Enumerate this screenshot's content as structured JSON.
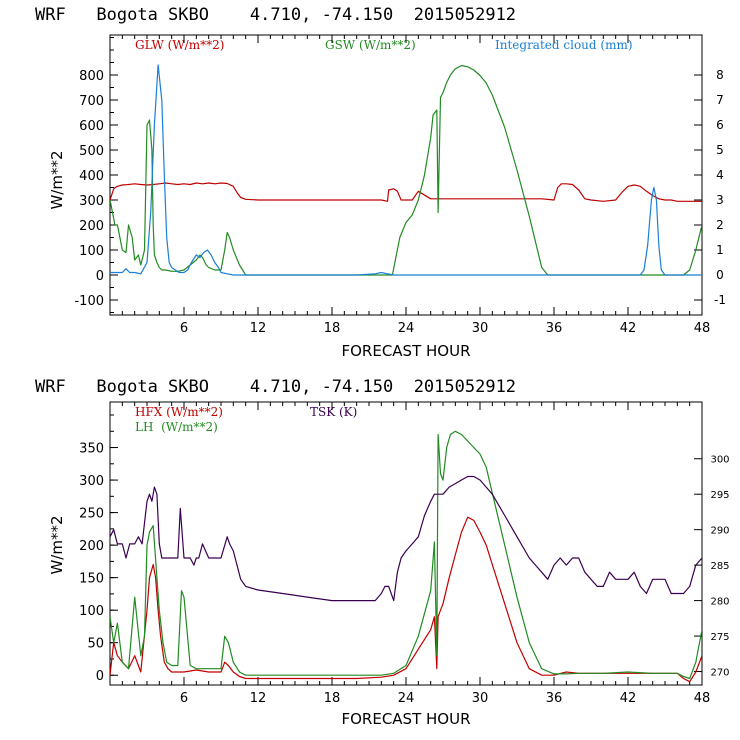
{
  "colors": {
    "glw": "#c00000",
    "gsw": "#228b22",
    "cloud": "#1a7fd4",
    "hfx": "#c00000",
    "lh": "#228b22",
    "tsk": "#3a0050"
  },
  "chart_data": [
    {
      "type": "line",
      "title": "WRF   Bogota SKBO    4.710, -74.150  2015052912",
      "xlabel": "FORECAST HOUR",
      "ylabel": "W/m**2",
      "xlim": [
        0,
        48
      ],
      "ylim": [
        -160,
        960
      ],
      "y2lim": [
        -1.6,
        9.6
      ],
      "xticks": [
        6,
        12,
        18,
        24,
        30,
        36,
        42,
        48
      ],
      "xtick_labels": [
        "6",
        "12",
        "18",
        "24",
        "30",
        "36",
        "42",
        "48"
      ],
      "yticks": [
        -100,
        0,
        100,
        200,
        300,
        400,
        500,
        600,
        700,
        800
      ],
      "ytick_labels": [
        "-100",
        "0",
        "100",
        "200",
        "300",
        "400",
        "500",
        "600",
        "700",
        "800"
      ],
      "y2ticks": [
        -1,
        0,
        1,
        2,
        3,
        4,
        5,
        6,
        7,
        8
      ],
      "y2tick_labels": [
        "-1",
        "0",
        "1",
        "2",
        "3",
        "4",
        "5",
        "6",
        "7",
        "8"
      ],
      "series": [
        {
          "name": "GLW (W/m**2)",
          "key": "glw",
          "axis": "left",
          "x": [
            0,
            0.3,
            0.6,
            1,
            1.5,
            2,
            2.5,
            3,
            3.5,
            4,
            4.5,
            5,
            5.5,
            6,
            6.5,
            7,
            7.5,
            8,
            8.5,
            9,
            9.5,
            10,
            10.3,
            10.6,
            11,
            12,
            14,
            16,
            18,
            20,
            21,
            21.5,
            22,
            22.5,
            22.6,
            23,
            23.3,
            23.6,
            24,
            24.5,
            25,
            26,
            27,
            28,
            30,
            32,
            34,
            35,
            36,
            36.3,
            36.6,
            37,
            37.5,
            38,
            38.5,
            39,
            40,
            41,
            41.5,
            42,
            42.5,
            43,
            43.5,
            44,
            44.5,
            45,
            45.5,
            46,
            47,
            48
          ],
          "values": [
            300,
            345,
            355,
            360,
            362,
            365,
            362,
            360,
            362,
            365,
            368,
            365,
            362,
            365,
            362,
            368,
            365,
            368,
            365,
            368,
            366,
            355,
            330,
            310,
            303,
            300,
            300,
            300,
            300,
            300,
            300,
            300,
            300,
            295,
            340,
            345,
            335,
            300,
            300,
            300,
            335,
            305,
            305,
            305,
            305,
            305,
            305,
            305,
            300,
            350,
            365,
            365,
            362,
            340,
            305,
            300,
            295,
            300,
            330,
            355,
            360,
            355,
            335,
            318,
            305,
            300,
            300,
            295,
            295,
            295
          ]
        },
        {
          "name": "GSW (W/m**2)",
          "key": "gsw",
          "axis": "left",
          "x": [
            0,
            0.2,
            0.4,
            0.6,
            0.8,
            1,
            1.3,
            1.5,
            1.8,
            2,
            2.3,
            2.5,
            2.8,
            3,
            3.2,
            3.4,
            3.5,
            3.6,
            3.8,
            4,
            4.2,
            4.5,
            5,
            5.5,
            6,
            6.5,
            7,
            7.3,
            7.5,
            7.8,
            8,
            8.5,
            9,
            9.3,
            9.5,
            9.7,
            10,
            10.5,
            11,
            12,
            16,
            20,
            22,
            22.9,
            23.5,
            24,
            24.5,
            25,
            25.5,
            26,
            26.2,
            26.5,
            26.6,
            26.8,
            27,
            27.3,
            27.6,
            28,
            28.5,
            29,
            29.5,
            30,
            30.5,
            31,
            32,
            33,
            34,
            35,
            35.5,
            36,
            44,
            46.5,
            47,
            47.5,
            48
          ],
          "values": [
            300,
            250,
            200,
            200,
            150,
            100,
            90,
            200,
            150,
            60,
            80,
            40,
            100,
            600,
            620,
            500,
            200,
            80,
            50,
            30,
            20,
            20,
            15,
            15,
            20,
            40,
            60,
            80,
            70,
            40,
            30,
            20,
            20,
            100,
            170,
            150,
            100,
            40,
            0,
            0,
            0,
            0,
            0,
            0,
            150,
            210,
            240,
            300,
            400,
            550,
            640,
            660,
            250,
            710,
            730,
            770,
            800,
            825,
            838,
            833,
            820,
            798,
            768,
            720,
            590,
            420,
            235,
            30,
            0,
            0,
            0,
            0,
            20,
            100,
            200
          ]
        },
        {
          "name": "Integrated cloud (mm)",
          "key": "cloud",
          "axis": "right",
          "x": [
            0,
            0.5,
            1,
            1.3,
            1.6,
            2,
            2.5,
            3,
            3.3,
            3.6,
            3.9,
            4.2,
            4.4,
            4.6,
            4.8,
            5,
            5.3,
            5.6,
            6,
            6.3,
            6.6,
            7,
            7.3,
            7.6,
            7.9,
            8.2,
            8.5,
            8.8,
            9,
            9.5,
            10,
            12,
            16,
            20,
            21.5,
            22,
            22.5,
            23,
            30,
            43,
            43.3,
            43.6,
            43.9,
            44.1,
            44.3,
            44.5,
            44.7,
            45,
            48
          ],
          "values": [
            0.1,
            0.1,
            0.1,
            0.25,
            0.1,
            0.1,
            0.05,
            0.5,
            2.5,
            6,
            8.4,
            7,
            4,
            1.5,
            0.5,
            0.3,
            0.2,
            0.1,
            0.1,
            0.2,
            0.5,
            0.8,
            0.7,
            0.9,
            1.0,
            0.8,
            0.5,
            0.3,
            0.1,
            0.05,
            0,
            0,
            0,
            0,
            0.05,
            0.1,
            0.05,
            0,
            0,
            0,
            0.2,
            1.2,
            3.0,
            3.5,
            3.0,
            1.2,
            0.2,
            0,
            0
          ]
        }
      ]
    },
    {
      "type": "line",
      "title": "WRF   Bogota SKBO    4.710, -74.150  2015052912",
      "xlabel": "FORECAST HOUR",
      "ylabel": "W/m**2",
      "xlim": [
        0,
        48
      ],
      "ylim": [
        -15,
        420
      ],
      "y2lim": [
        268.1,
        308
      ],
      "xticks": [
        6,
        12,
        18,
        24,
        30,
        36,
        42,
        48
      ],
      "xtick_labels": [
        "6",
        "12",
        "18",
        "24",
        "30",
        "36",
        "42",
        "48"
      ],
      "yticks": [
        0,
        50,
        100,
        150,
        200,
        250,
        300,
        350
      ],
      "ytick_labels": [
        "0",
        "50",
        "100",
        "150",
        "200",
        "250",
        "300",
        "350"
      ],
      "y2ticks": [
        270,
        275,
        280,
        285,
        290,
        295,
        300
      ],
      "y2tick_labels": [
        "270",
        "275",
        "280",
        "285",
        "290",
        "295",
        "300"
      ],
      "series": [
        {
          "name": "HFX (W/m**2)",
          "key": "hfx",
          "axis": "left",
          "x": [
            0,
            0.3,
            0.6,
            1,
            1.5,
            2,
            2.5,
            3,
            3.2,
            3.5,
            3.7,
            3.9,
            4.1,
            4.4,
            4.7,
            5,
            5.5,
            6,
            7,
            8,
            9,
            9.3,
            9.6,
            10,
            10.5,
            11,
            12,
            14,
            16,
            18,
            20,
            22,
            23,
            24,
            25,
            26,
            26.3,
            26.5,
            26.6,
            26.8,
            27,
            27.5,
            28,
            28.5,
            29,
            29.5,
            30,
            30.5,
            31,
            32,
            33,
            34,
            35,
            36,
            37,
            38,
            40,
            42,
            44,
            46,
            46.5,
            47,
            47.5,
            48
          ],
          "values": [
            0,
            50,
            30,
            20,
            10,
            30,
            5,
            100,
            150,
            170,
            150,
            100,
            60,
            20,
            10,
            5,
            5,
            5,
            8,
            5,
            5,
            20,
            15,
            5,
            -2,
            -5,
            -5,
            -5,
            -5,
            -5,
            -5,
            -3,
            0,
            10,
            40,
            70,
            90,
            10,
            90,
            100,
            110,
            150,
            185,
            220,
            243,
            238,
            220,
            200,
            170,
            110,
            50,
            10,
            0,
            0,
            5,
            3,
            3,
            3,
            3,
            3,
            -5,
            -10,
            5,
            30
          ]
        },
        {
          "name": "LH  (W/m**2)",
          "key": "lh",
          "axis": "left",
          "x": [
            0,
            0.3,
            0.6,
            1,
            1.5,
            2,
            2.5,
            2.8,
            3,
            3.2,
            3.5,
            3.8,
            4,
            4.3,
            4.6,
            5,
            5.5,
            5.8,
            6,
            6.5,
            7,
            8,
            9,
            9.3,
            9.6,
            10,
            10.5,
            11,
            12,
            14,
            16,
            18,
            20,
            22,
            23,
            24,
            25,
            26,
            26.3,
            26.5,
            26.6,
            26.8,
            27,
            27.3,
            27.6,
            28,
            28.5,
            29,
            29.5,
            30,
            30.5,
            31,
            32,
            33,
            34,
            35,
            36,
            37,
            38,
            40,
            42,
            44,
            46,
            46.5,
            47,
            47.5,
            48
          ],
          "values": [
            90,
            50,
            80,
            20,
            10,
            120,
            30,
            60,
            200,
            220,
            230,
            150,
            100,
            50,
            20,
            15,
            15,
            130,
            120,
            15,
            10,
            10,
            10,
            60,
            50,
            20,
            5,
            0,
            0,
            0,
            0,
            0,
            0,
            0,
            3,
            15,
            60,
            130,
            205,
            30,
            370,
            310,
            300,
            350,
            370,
            375,
            370,
            360,
            350,
            340,
            320,
            280,
            200,
            120,
            50,
            10,
            2,
            2,
            3,
            3,
            5,
            3,
            3,
            -2,
            -5,
            20,
            70
          ]
        },
        {
          "name": "TSK (K)",
          "key": "tsk",
          "axis": "right",
          "x": [
            0,
            0.3,
            0.6,
            1,
            1.3,
            1.6,
            2,
            2.3,
            2.6,
            3,
            3.2,
            3.4,
            3.6,
            3.8,
            4,
            4.2,
            4.4,
            4.6,
            4.8,
            5,
            5.5,
            5.7,
            6,
            6.5,
            6.8,
            7,
            7.2,
            7.5,
            8,
            8.5,
            9,
            9.5,
            9.7,
            10,
            10.3,
            10.6,
            11,
            12,
            14,
            16,
            18,
            20,
            21,
            21.5,
            22,
            22.3,
            22.6,
            23,
            23.3,
            23.6,
            24,
            24.5,
            25,
            25.5,
            26,
            26.3,
            26.6,
            27,
            27.5,
            28,
            28.5,
            29,
            29.5,
            30,
            30.5,
            31,
            32,
            33,
            34,
            34.5,
            35,
            35.5,
            36,
            36.5,
            37,
            37.5,
            38,
            38.5,
            39,
            39.5,
            40,
            40.5,
            41,
            41.5,
            42,
            42.5,
            43,
            43.5,
            44,
            44.5,
            45,
            45.5,
            46,
            46.5,
            47,
            47.5,
            48
          ],
          "values": [
            289,
            290,
            288,
            288,
            286,
            288,
            288,
            289,
            288,
            294,
            295,
            294,
            296,
            295,
            288,
            286,
            286,
            286,
            286,
            286,
            286,
            293,
            286,
            286,
            285,
            286,
            286,
            288,
            286,
            286,
            286,
            289,
            288,
            287,
            285,
            283,
            282,
            281.5,
            281,
            280.5,
            280,
            280,
            280,
            280,
            281,
            282,
            282,
            280,
            284,
            286,
            287,
            288,
            289,
            292,
            294,
            295,
            295,
            295,
            296,
            296.5,
            297,
            297.5,
            297.5,
            297,
            296,
            295,
            292,
            289,
            286,
            285,
            284,
            283,
            285,
            286,
            285,
            286,
            286,
            284,
            283,
            282,
            282,
            284,
            283,
            283,
            283,
            284,
            282,
            281,
            283,
            283,
            283,
            281,
            281,
            281,
            282,
            285,
            286
          ]
        }
      ]
    }
  ],
  "legends": {
    "top": {
      "glw": "GLW (W/m**2)",
      "gsw": "GSW (W/m**2)",
      "cloud": "Integrated cloud (mm)"
    },
    "bottom": {
      "hfx": "HFX (W/m**2)",
      "lh": "LH  (W/m**2)",
      "tsk": "TSK (K)"
    }
  }
}
